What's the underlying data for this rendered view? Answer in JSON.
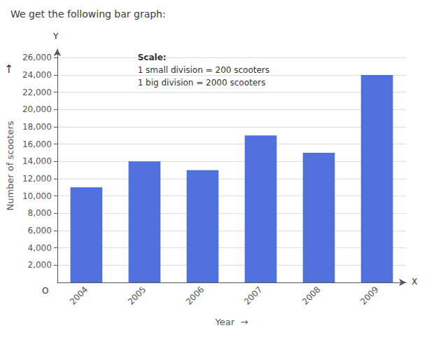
{
  "chart_data": {
    "type": "bar",
    "title": "We get the following bar graph:",
    "categories": [
      "2004",
      "2005",
      "2006",
      "2007",
      "2008",
      "2009"
    ],
    "values": [
      11000,
      14000,
      13000,
      17000,
      15000,
      24000
    ],
    "ylabel": "Number of scooters",
    "xlabel": "Year  →",
    "ylim": [
      0,
      27000
    ],
    "yticks": [
      2000,
      4000,
      6000,
      8000,
      10000,
      12000,
      14000,
      16000,
      18000,
      20000,
      22000,
      24000,
      26000
    ],
    "grid": true,
    "annotations": [
      "Scale:",
      "1 small division = 200 scooters",
      "1 big division = 2000 scooters"
    ],
    "axis_marks": {
      "x": "X",
      "y": "Y",
      "origin": "O",
      "ylabel_arrow": "↑"
    }
  }
}
